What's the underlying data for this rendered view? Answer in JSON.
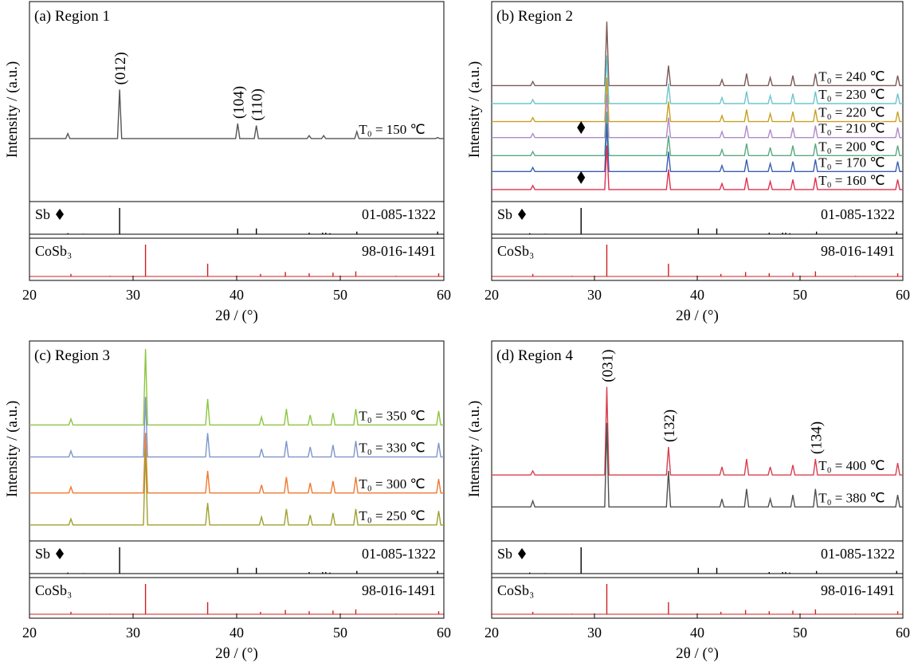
{
  "chart_data": [
    {
      "type": "line",
      "title": "(a) Region 1",
      "xlabel": "2θ / (°)",
      "ylabel": "Intensity / (a.u.)",
      "xlim": [
        20,
        60
      ],
      "xticks": [
        20,
        30,
        40,
        50,
        60
      ],
      "ylim": [
        0,
        100
      ],
      "x": [
        20,
        23.5,
        23.7,
        23.9,
        28.5,
        28.7,
        28.9,
        39.9,
        40.1,
        40.3,
        41.7,
        41.9,
        42.1,
        46.8,
        47.0,
        47.2,
        48.2,
        48.4,
        48.6,
        51.4,
        51.6,
        51.8,
        59.2,
        59.4,
        59.6,
        60
      ],
      "series": [
        {
          "name": "T₀ = 150 ℃",
          "color": "#555555",
          "values": [
            31.5,
            31.5,
            34,
            31.5,
            31.5,
            56,
            31.5,
            31.5,
            39,
            31.5,
            31.5,
            38,
            31.5,
            31.5,
            33,
            31.5,
            31.5,
            33,
            31.5,
            31.5,
            35,
            31.5,
            31.5,
            32,
            31.5,
            31.5
          ]
        }
      ],
      "annotations": [
        {
          "text": "(012)",
          "x": 28.7
        },
        {
          "text": "(104)",
          "x": 40.1
        },
        {
          "text": "(110)",
          "x": 41.9
        }
      ],
      "references": [
        {
          "name": "Sb",
          "code": "01-085-1322",
          "color": "#000000",
          "ylim": [
            0,
            100
          ],
          "x": [
            23.7,
            25.2,
            28.7,
            40.1,
            41.9,
            47.0,
            48.3,
            48.6,
            49.0,
            51.6,
            59.4
          ],
          "values": [
            4,
            2,
            100,
            22,
            22,
            6,
            6,
            6,
            4,
            10,
            10
          ]
        },
        {
          "name": "CoSb₃",
          "code": "98-016-1491",
          "color": "#d02020",
          "ylim": [
            0,
            100
          ],
          "x": [
            24.0,
            27.8,
            31.2,
            37.2,
            42.3,
            44.7,
            47.0,
            49.3,
            51.5,
            55.4,
            59.5
          ],
          "values": [
            8,
            2,
            100,
            40,
            8,
            14,
            10,
            12,
            16,
            2,
            10
          ]
        }
      ]
    },
    {
      "type": "line",
      "title": "(b) Region 2",
      "xlabel": "2θ / (°)",
      "ylabel": "Intensity / (a.u.)",
      "xlim": [
        20,
        60
      ],
      "xticks": [
        20,
        30,
        40,
        50,
        60
      ],
      "ylim": [
        0,
        100
      ],
      "x": [
        20,
        23.8,
        24.0,
        24.2,
        31.0,
        31.2,
        31.4,
        37.0,
        37.2,
        37.4,
        42.2,
        42.4,
        42.6,
        44.6,
        44.8,
        45.0,
        46.9,
        47.1,
        47.3,
        49.1,
        49.3,
        49.5,
        51.3,
        51.5,
        51.7,
        59.3,
        59.5,
        59.7,
        60
      ],
      "series": [
        {
          "name": "T₀ = 240 ℃",
          "color": "#7a5a55",
          "values": [
            58,
            58,
            60,
            58,
            58,
            90,
            58,
            58,
            68,
            58,
            58,
            61,
            58,
            58,
            64,
            58,
            58,
            62,
            58,
            58,
            63,
            58,
            58,
            64,
            58,
            58,
            63,
            58,
            58
          ]
        },
        {
          "name": "T₀ = 230 ℃",
          "color": "#6cc5cc",
          "values": [
            49,
            49,
            51,
            49,
            49,
            73,
            49,
            49,
            59,
            49,
            49,
            52,
            49,
            49,
            55,
            49,
            49,
            53,
            49,
            49,
            54,
            49,
            49,
            55,
            49,
            49,
            54,
            49,
            49
          ]
        },
        {
          "name": "T₀ = 220 ℃",
          "color": "#c9a020",
          "values": [
            40,
            40,
            42,
            40,
            40,
            62,
            40,
            40,
            50,
            40,
            40,
            43,
            40,
            40,
            46,
            40,
            40,
            44,
            40,
            40,
            45,
            40,
            40,
            46,
            40,
            40,
            45,
            40,
            40
          ]
        },
        {
          "name": "T₀ = 210 ℃",
          "color": "#b08ac8",
          "values": [
            32,
            32,
            34,
            32,
            32,
            54,
            32,
            32,
            42,
            32,
            32,
            35,
            32,
            32,
            38,
            32,
            32,
            36,
            32,
            32,
            37,
            32,
            32,
            38,
            32,
            32,
            37,
            32,
            32
          ]
        },
        {
          "name": "T₀ = 200 ℃",
          "color": "#5aaa80",
          "values": [
            23,
            23,
            25,
            23,
            23,
            45,
            23,
            23,
            33,
            23,
            23,
            26,
            23,
            23,
            29,
            23,
            23,
            27,
            23,
            23,
            28,
            23,
            23,
            29,
            23,
            23,
            28,
            23,
            23
          ]
        },
        {
          "name": "T₀ = 170 ℃",
          "color": "#3a5fb0",
          "values": [
            15,
            15,
            17,
            15,
            15,
            39,
            15,
            15,
            25,
            15,
            15,
            18,
            15,
            15,
            21,
            15,
            15,
            19,
            15,
            15,
            20,
            15,
            15,
            21,
            15,
            15,
            20,
            15,
            15
          ]
        },
        {
          "name": "T₀ = 160 ℃",
          "color": "#e03050",
          "values": [
            6,
            6,
            8,
            6,
            6,
            28,
            6,
            6,
            16,
            6,
            6,
            9,
            6,
            6,
            12,
            6,
            6,
            10,
            6,
            6,
            11,
            6,
            6,
            12,
            6,
            6,
            11,
            6,
            6
          ]
        }
      ],
      "markers": [
        {
          "x": 28.7,
          "y": 37
        },
        {
          "x": 28.7,
          "y": 12
        }
      ],
      "references": [
        {
          "name": "Sb",
          "code": "01-085-1322",
          "color": "#000000",
          "ylim": [
            0,
            100
          ],
          "x": [
            23.7,
            25.2,
            28.7,
            40.1,
            41.9,
            47.0,
            48.3,
            48.6,
            49.0,
            51.6,
            59.4
          ],
          "values": [
            4,
            2,
            100,
            22,
            22,
            6,
            6,
            6,
            4,
            10,
            10
          ]
        },
        {
          "name": "CoSb₃",
          "code": "98-016-1491",
          "color": "#d02020",
          "ylim": [
            0,
            100
          ],
          "x": [
            24.0,
            27.8,
            31.2,
            37.2,
            42.3,
            44.7,
            47.0,
            49.3,
            51.5,
            55.4,
            59.5
          ],
          "values": [
            8,
            2,
            100,
            40,
            8,
            14,
            10,
            12,
            16,
            2,
            10
          ]
        }
      ]
    },
    {
      "type": "line",
      "title": "(c) Region 3",
      "xlabel": "2θ / (°)",
      "ylabel": "Intensity / (a.u.)",
      "xlim": [
        20,
        60
      ],
      "xticks": [
        20,
        30,
        40,
        50,
        60
      ],
      "ylim": [
        0,
        100
      ],
      "x": [
        20,
        23.8,
        24.0,
        24.2,
        31.0,
        31.2,
        31.4,
        37.0,
        37.2,
        37.4,
        42.2,
        42.4,
        42.6,
        44.6,
        44.8,
        45.0,
        46.9,
        47.1,
        47.3,
        49.1,
        49.3,
        49.5,
        51.3,
        51.5,
        51.7,
        59.3,
        59.5,
        59.7,
        60
      ],
      "series": [
        {
          "name": "T₀ = 350 ℃",
          "color": "#8cc63f",
          "values": [
            58,
            58,
            61,
            58,
            58,
            96,
            58,
            58,
            71,
            58,
            58,
            62,
            58,
            58,
            66,
            58,
            58,
            63,
            58,
            58,
            64,
            58,
            58,
            66,
            58,
            58,
            65,
            58,
            58
          ]
        },
        {
          "name": "T₀ = 330 ℃",
          "color": "#7d96c8",
          "values": [
            42,
            42,
            45,
            42,
            42,
            72,
            42,
            42,
            54,
            42,
            42,
            46,
            42,
            42,
            50,
            42,
            42,
            47,
            42,
            42,
            48,
            42,
            42,
            50,
            42,
            42,
            49,
            42,
            42
          ]
        },
        {
          "name": "T₀ = 300 ℃",
          "color": "#f07830",
          "values": [
            24,
            24,
            27,
            24,
            24,
            54,
            24,
            24,
            35,
            24,
            24,
            28,
            24,
            24,
            32,
            24,
            24,
            29,
            24,
            24,
            30,
            24,
            24,
            32,
            24,
            24,
            31,
            24,
            24
          ]
        },
        {
          "name": "T₀ = 250 ℃",
          "color": "#a0a030",
          "values": [
            8,
            8,
            11,
            8,
            8,
            46,
            8,
            8,
            19,
            8,
            8,
            12,
            8,
            8,
            16,
            8,
            8,
            13,
            8,
            8,
            14,
            8,
            8,
            16,
            8,
            8,
            15,
            8,
            8
          ]
        }
      ],
      "references": [
        {
          "name": "Sb",
          "code": "01-085-1322",
          "color": "#000000",
          "ylim": [
            0,
            100
          ],
          "x": [
            23.7,
            25.2,
            28.7,
            40.1,
            41.9,
            47.0,
            48.3,
            48.6,
            49.0,
            51.6,
            59.4
          ],
          "values": [
            4,
            2,
            100,
            22,
            22,
            6,
            6,
            6,
            4,
            10,
            10
          ]
        },
        {
          "name": "CoSb₃",
          "code": "98-016-1491",
          "color": "#d02020",
          "ylim": [
            0,
            100
          ],
          "x": [
            24.0,
            27.8,
            31.2,
            37.2,
            42.3,
            44.7,
            47.0,
            49.3,
            51.5,
            55.4,
            59.5
          ],
          "values": [
            8,
            2,
            100,
            40,
            8,
            14,
            10,
            12,
            16,
            2,
            10
          ]
        }
      ]
    },
    {
      "type": "line",
      "title": "(d) Region 4",
      "xlabel": "2θ / (°)",
      "ylabel": "Intensity / (a.u.)",
      "xlim": [
        20,
        60
      ],
      "xticks": [
        20,
        30,
        40,
        50,
        60
      ],
      "ylim": [
        0,
        100
      ],
      "x": [
        20,
        23.8,
        24.0,
        24.2,
        31.0,
        31.2,
        31.4,
        37.0,
        37.2,
        37.4,
        42.2,
        42.4,
        42.6,
        44.6,
        44.8,
        45.0,
        46.9,
        47.1,
        47.3,
        49.1,
        49.3,
        49.5,
        51.3,
        51.5,
        51.7,
        59.3,
        59.5,
        59.7,
        60
      ],
      "series": [
        {
          "name": "T₀ = 400 ℃",
          "color": "#d84050",
          "values": [
            33,
            33,
            35,
            33,
            33,
            77,
            33,
            33,
            47,
            33,
            33,
            37,
            33,
            33,
            41,
            33,
            33,
            37,
            33,
            33,
            38,
            33,
            33,
            41,
            33,
            33,
            39,
            33,
            33
          ]
        },
        {
          "name": "T₀ = 380 ℃",
          "color": "#505050",
          "values": [
            17,
            17,
            20,
            17,
            17,
            59,
            17,
            17,
            35,
            17,
            17,
            21,
            17,
            17,
            26,
            17,
            17,
            21,
            17,
            17,
            23,
            17,
            17,
            26,
            17,
            17,
            23,
            17,
            17
          ]
        }
      ],
      "annotations": [
        {
          "text": "(031)",
          "x": 31.2
        },
        {
          "text": "(132)",
          "x": 37.2
        },
        {
          "text": "(134)",
          "x": 51.5
        }
      ],
      "references": [
        {
          "name": "Sb",
          "code": "01-085-1322",
          "color": "#000000",
          "ylim": [
            0,
            100
          ],
          "x": [
            23.7,
            25.2,
            28.7,
            40.1,
            41.9,
            47.0,
            48.3,
            48.6,
            49.0,
            51.6,
            59.4
          ],
          "values": [
            4,
            2,
            100,
            22,
            22,
            6,
            6,
            6,
            4,
            10,
            10
          ]
        },
        {
          "name": "CoSb₃",
          "code": "98-016-1491",
          "color": "#d02020",
          "ylim": [
            0,
            100
          ],
          "x": [
            24.0,
            27.8,
            31.2,
            37.2,
            42.3,
            44.7,
            47.0,
            49.3,
            51.5,
            55.4,
            59.5
          ],
          "values": [
            8,
            2,
            100,
            40,
            8,
            14,
            10,
            12,
            16,
            2,
            10
          ]
        }
      ]
    }
  ]
}
